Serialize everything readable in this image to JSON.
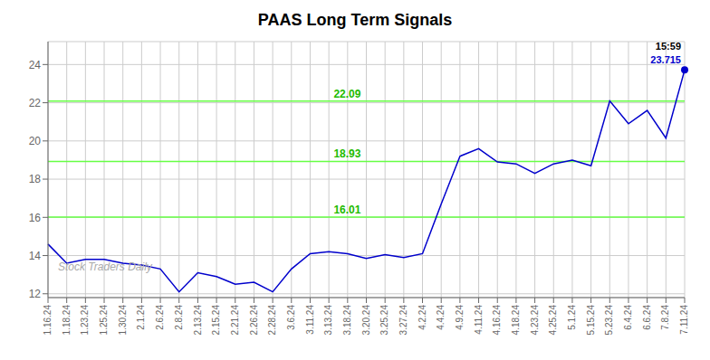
{
  "chart_data": {
    "type": "line",
    "title": "PAAS Long Term Signals",
    "categories": [
      "1.16.24",
      "1.18.24",
      "1.23.24",
      "1.25.24",
      "1.30.24",
      "2.1.24",
      "2.6.24",
      "2.8.24",
      "2.13.24",
      "2.15.24",
      "2.21.24",
      "2.26.24",
      "2.28.24",
      "3.6.24",
      "3.11.24",
      "3.13.24",
      "3.18.24",
      "3.20.24",
      "3.25.24",
      "3.27.24",
      "4.2.24",
      "4.4.24",
      "4.9.24",
      "4.11.24",
      "4.16.24",
      "4.18.24",
      "4.23.24",
      "4.25.24",
      "5.1.24",
      "5.15.24",
      "5.23.24",
      "6.4.24",
      "6.6.24",
      "7.8.24",
      "7.11.24"
    ],
    "values": [
      14.6,
      13.6,
      13.8,
      13.8,
      13.6,
      13.5,
      13.3,
      12.1,
      13.1,
      12.9,
      12.5,
      12.6,
      12.1,
      13.3,
      14.1,
      14.2,
      14.1,
      13.85,
      14.05,
      13.9,
      14.1,
      16.7,
      19.2,
      19.6,
      18.9,
      18.8,
      18.3,
      18.8,
      19.0,
      18.7,
      22.1,
      20.9,
      21.6,
      20.15,
      23.715
    ],
    "color": "#0000cc",
    "hlines": [
      {
        "value": 16.01,
        "label": "16.01",
        "color": "#66ff44",
        "label_color": "#22bb00"
      },
      {
        "value": 18.93,
        "label": "18.93",
        "color": "#66ff44",
        "label_color": "#22bb00"
      },
      {
        "value": 22.09,
        "label": "22.09",
        "color": "#66ff44",
        "label_color": "#22bb00"
      }
    ],
    "annotations": [
      {
        "category": "7.11.24",
        "value": 23.715,
        "text": "15:59",
        "color": "#000000"
      },
      {
        "category": "7.11.24",
        "value": 23.715,
        "text": "23.715",
        "color": "#0000cc"
      }
    ],
    "watermark": "Stock Traders Daily",
    "ylim": [
      11.8,
      25.2
    ],
    "yticks": [
      12,
      14,
      16,
      18,
      20,
      22,
      24
    ],
    "grid": true,
    "grid_color": "#cccccc"
  }
}
